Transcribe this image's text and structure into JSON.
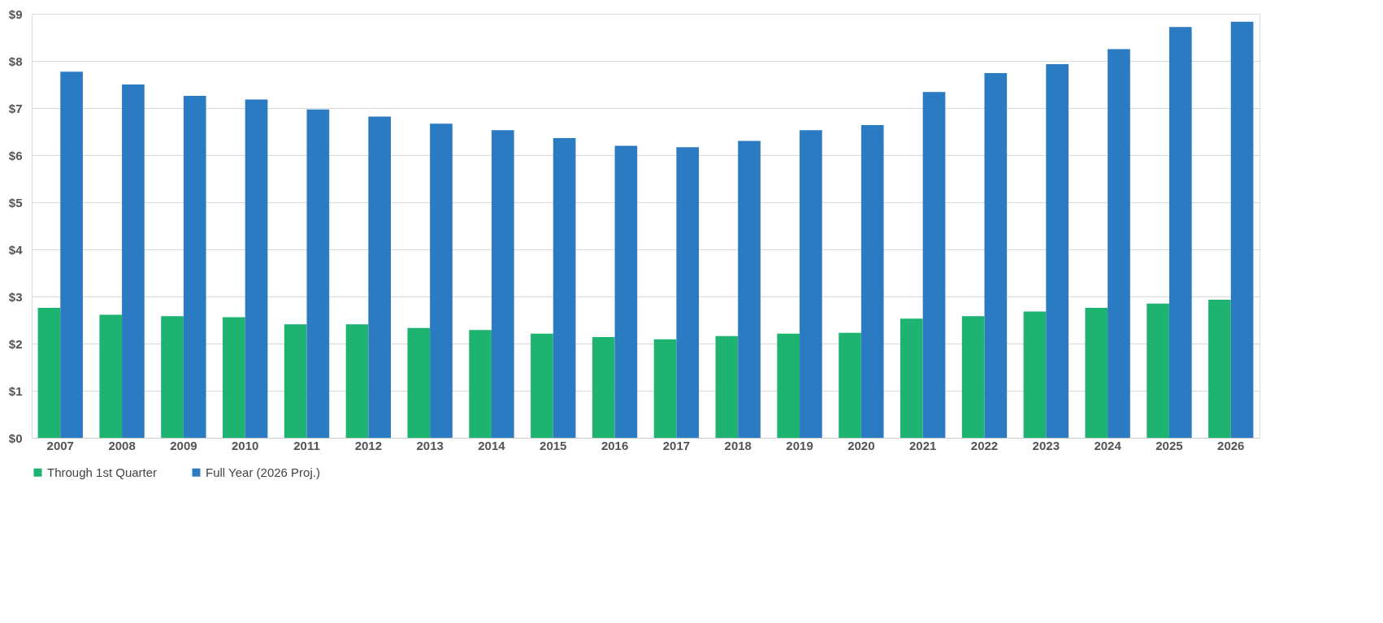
{
  "chart_data": {
    "type": "bar",
    "categories": [
      "2007",
      "2008",
      "2009",
      "2010",
      "2011",
      "2012",
      "2013",
      "2014",
      "2015",
      "2016",
      "2017",
      "2018",
      "2019",
      "2020",
      "2021",
      "2022",
      "2023",
      "2024",
      "2025",
      "2026"
    ],
    "series": [
      {
        "name": "Through 1st Quarter",
        "color": "#1fb372",
        "values": [
          2.76,
          2.61,
          2.58,
          2.56,
          2.41,
          2.41,
          2.33,
          2.29,
          2.21,
          2.14,
          2.09,
          2.16,
          2.21,
          2.23,
          2.53,
          2.58,
          2.68,
          2.76,
          2.85,
          2.93
        ]
      },
      {
        "name": "Full Year (2026 Proj.)",
        "color": "#2a7bc1",
        "values": [
          7.77,
          7.5,
          7.26,
          7.18,
          6.97,
          6.82,
          6.67,
          6.53,
          6.36,
          6.2,
          6.17,
          6.3,
          6.53,
          6.64,
          7.34,
          7.74,
          7.93,
          8.25,
          8.72,
          8.83
        ]
      }
    ],
    "ylim": [
      0,
      9
    ],
    "yticks": [
      {
        "value": 0,
        "label": "$0"
      },
      {
        "value": 1,
        "label": "$1"
      },
      {
        "value": 2,
        "label": "$2"
      },
      {
        "value": 3,
        "label": "$3"
      },
      {
        "value": 4,
        "label": "$4"
      },
      {
        "value": 5,
        "label": "$5"
      },
      {
        "value": 6,
        "label": "$6"
      },
      {
        "value": 7,
        "label": "$7"
      },
      {
        "value": 8,
        "label": "$8"
      },
      {
        "value": 9,
        "label": "$9"
      }
    ],
    "grid": "y",
    "legend": "bottom"
  }
}
